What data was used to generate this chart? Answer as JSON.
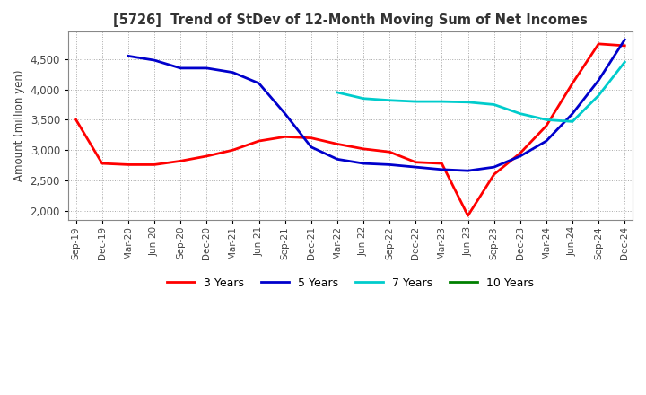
{
  "title": "[5726]  Trend of StDev of 12-Month Moving Sum of Net Incomes",
  "ylabel": "Amount (million yen)",
  "ylim": [
    1850,
    4950
  ],
  "yticks": [
    2000,
    2500,
    3000,
    3500,
    4000,
    4500
  ],
  "line_colors": {
    "3 Years": "#ff0000",
    "5 Years": "#0000cc",
    "7 Years": "#00cccc",
    "10 Years": "#008000"
  },
  "x_labels": [
    "Sep-19",
    "Dec-19",
    "Mar-20",
    "Jun-20",
    "Sep-20",
    "Dec-20",
    "Mar-21",
    "Jun-21",
    "Sep-21",
    "Dec-21",
    "Mar-22",
    "Jun-22",
    "Sep-22",
    "Dec-22",
    "Mar-23",
    "Jun-23",
    "Sep-23",
    "Dec-23",
    "Mar-24",
    "Jun-24",
    "Sep-24",
    "Dec-24"
  ],
  "series": {
    "3 Years": [
      3500,
      2780,
      2760,
      2760,
      2820,
      2900,
      3000,
      3150,
      3220,
      3200,
      3100,
      3020,
      2970,
      2800,
      2780,
      1920,
      2600,
      2950,
      3400,
      4100,
      4750,
      4720
    ],
    "5 Years": [
      null,
      null,
      4550,
      4480,
      4350,
      4350,
      4280,
      4100,
      3600,
      3050,
      2850,
      2780,
      2760,
      2720,
      2680,
      2660,
      2720,
      2900,
      3150,
      3600,
      4150,
      4820
    ],
    "7 Years": [
      null,
      null,
      null,
      null,
      null,
      null,
      null,
      null,
      null,
      null,
      3950,
      3850,
      3820,
      3800,
      3800,
      3790,
      3750,
      3600,
      3500,
      3470,
      3900,
      4450
    ],
    "10 Years": [
      null,
      null,
      null,
      null,
      null,
      null,
      null,
      null,
      null,
      null,
      null,
      null,
      null,
      null,
      null,
      null,
      null,
      null,
      null,
      null,
      null,
      null
    ]
  },
  "background_color": "#ffffff",
  "grid_color": "#aaaaaa",
  "grid_style": "dotted"
}
